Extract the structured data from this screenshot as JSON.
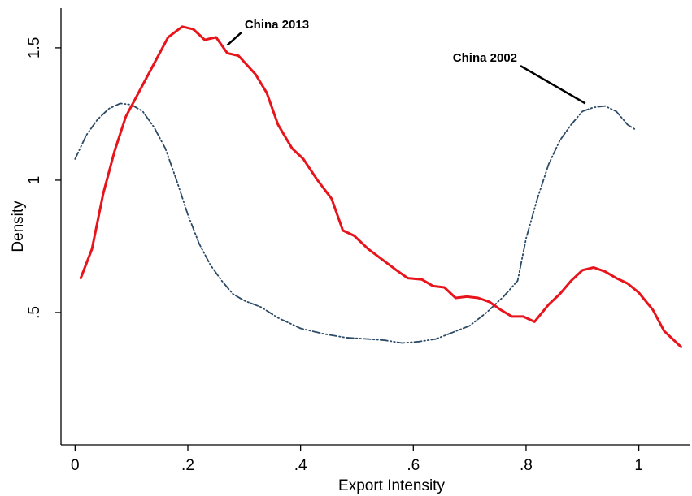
{
  "chart_data": {
    "type": "line",
    "title": "",
    "xlabel": "Export Intensity",
    "ylabel": "Density",
    "xlim": [
      -0.025,
      1.09
    ],
    "ylim": [
      0,
      1.65
    ],
    "xticks": [
      {
        "value": 0,
        "label": "0"
      },
      {
        "value": 0.2,
        "label": ".2"
      },
      {
        "value": 0.4,
        "label": ".4"
      },
      {
        "value": 0.6,
        "label": ".6"
      },
      {
        "value": 0.8,
        "label": ".8"
      },
      {
        "value": 1,
        "label": "1"
      }
    ],
    "yticks": [
      {
        "value": 0.5,
        "label": ".5"
      },
      {
        "value": 1,
        "label": "1"
      },
      {
        "value": 1.5,
        "label": "1.5"
      }
    ],
    "grid": false,
    "legend": "none",
    "series": [
      {
        "name": "China 2013",
        "color": "#e8141b",
        "style": "solid",
        "points": [
          [
            0.01,
            0.63
          ],
          [
            0.03,
            0.74
          ],
          [
            0.05,
            0.95
          ],
          [
            0.07,
            1.11
          ],
          [
            0.09,
            1.24
          ],
          [
            0.11,
            1.32
          ],
          [
            0.14,
            1.44
          ],
          [
            0.165,
            1.54
          ],
          [
            0.19,
            1.58
          ],
          [
            0.21,
            1.57
          ],
          [
            0.23,
            1.53
          ],
          [
            0.25,
            1.54
          ],
          [
            0.27,
            1.48
          ],
          [
            0.29,
            1.47
          ],
          [
            0.32,
            1.4
          ],
          [
            0.34,
            1.33
          ],
          [
            0.36,
            1.21
          ],
          [
            0.385,
            1.12
          ],
          [
            0.405,
            1.08
          ],
          [
            0.43,
            1.0
          ],
          [
            0.455,
            0.93
          ],
          [
            0.475,
            0.81
          ],
          [
            0.495,
            0.79
          ],
          [
            0.52,
            0.74
          ],
          [
            0.545,
            0.7
          ],
          [
            0.57,
            0.66
          ],
          [
            0.59,
            0.63
          ],
          [
            0.615,
            0.625
          ],
          [
            0.635,
            0.6
          ],
          [
            0.655,
            0.595
          ],
          [
            0.675,
            0.555
          ],
          [
            0.695,
            0.56
          ],
          [
            0.715,
            0.555
          ],
          [
            0.735,
            0.54
          ],
          [
            0.755,
            0.51
          ],
          [
            0.775,
            0.485
          ],
          [
            0.795,
            0.485
          ],
          [
            0.815,
            0.465
          ],
          [
            0.84,
            0.53
          ],
          [
            0.86,
            0.57
          ],
          [
            0.88,
            0.62
          ],
          [
            0.9,
            0.66
          ],
          [
            0.92,
            0.67
          ],
          [
            0.94,
            0.655
          ],
          [
            0.96,
            0.63
          ],
          [
            0.98,
            0.61
          ],
          [
            1.0,
            0.575
          ],
          [
            1.025,
            0.51
          ],
          [
            1.045,
            0.43
          ],
          [
            1.075,
            0.37
          ]
        ]
      },
      {
        "name": "China 2002",
        "color": "#2c4a66",
        "style": "dash-dot",
        "points": [
          [
            0.0,
            1.08
          ],
          [
            0.02,
            1.17
          ],
          [
            0.04,
            1.23
          ],
          [
            0.06,
            1.27
          ],
          [
            0.08,
            1.29
          ],
          [
            0.1,
            1.285
          ],
          [
            0.12,
            1.26
          ],
          [
            0.14,
            1.2
          ],
          [
            0.16,
            1.12
          ],
          [
            0.18,
            1.0
          ],
          [
            0.2,
            0.87
          ],
          [
            0.22,
            0.76
          ],
          [
            0.24,
            0.68
          ],
          [
            0.26,
            0.62
          ],
          [
            0.28,
            0.57
          ],
          [
            0.3,
            0.545
          ],
          [
            0.33,
            0.52
          ],
          [
            0.36,
            0.48
          ],
          [
            0.4,
            0.44
          ],
          [
            0.44,
            0.42
          ],
          [
            0.48,
            0.405
          ],
          [
            0.52,
            0.4
          ],
          [
            0.55,
            0.395
          ],
          [
            0.58,
            0.385
          ],
          [
            0.61,
            0.39
          ],
          [
            0.64,
            0.4
          ],
          [
            0.67,
            0.425
          ],
          [
            0.7,
            0.45
          ],
          [
            0.73,
            0.5
          ],
          [
            0.76,
            0.56
          ],
          [
            0.785,
            0.62
          ],
          [
            0.8,
            0.78
          ],
          [
            0.82,
            0.93
          ],
          [
            0.84,
            1.06
          ],
          [
            0.86,
            1.15
          ],
          [
            0.88,
            1.21
          ],
          [
            0.9,
            1.26
          ],
          [
            0.92,
            1.275
          ],
          [
            0.94,
            1.28
          ],
          [
            0.96,
            1.26
          ],
          [
            0.98,
            1.21
          ],
          [
            0.995,
            1.19
          ]
        ]
      }
    ],
    "annotations": [
      {
        "text": "China 2013",
        "series": "China 2013",
        "arrow_from": [
          0.295,
          1.558
        ],
        "arrow_to": [
          0.27,
          1.51
        ]
      },
      {
        "text": "China 2002",
        "series": "China 2002",
        "arrow_from": [
          0.79,
          1.432
        ],
        "arrow_to": [
          0.905,
          1.29
        ]
      }
    ]
  }
}
